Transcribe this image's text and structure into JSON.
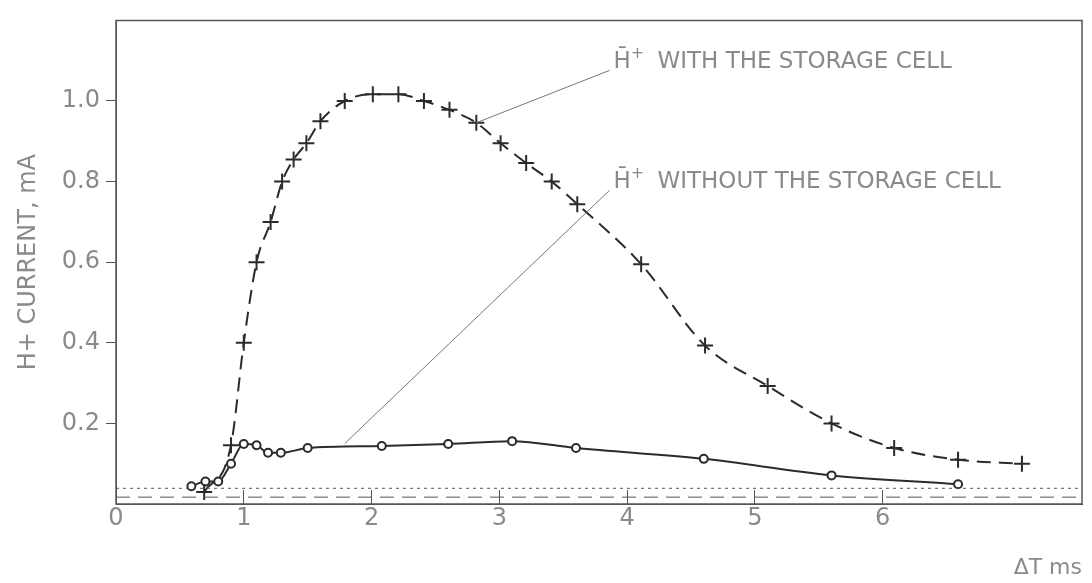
{
  "chart_data": {
    "type": "line",
    "xlabel": "ΔT ms",
    "ylabel": "H+ CURRENT, mA",
    "xlim": [
      0,
      7.56
    ],
    "xticks": [
      0,
      1,
      2,
      3,
      4,
      5,
      6
    ],
    "ylim": [
      0,
      1.2
    ],
    "yticks": [
      0.2,
      0.4,
      0.6,
      0.8,
      {
        "value": 1,
        "label": "1.0"
      }
    ],
    "grid": false,
    "legend": false,
    "series": [
      {
        "color": "#2b2b2b",
        "marker": "cross",
        "line_style": "dashed",
        "x": [
          0.69,
          0.9,
          1.0,
          1.1,
          1.21,
          1.3,
          1.39,
          1.49,
          1.6,
          1.79,
          2.01,
          2.21,
          2.41,
          2.61,
          2.82,
          3.01,
          3.21,
          3.41,
          3.61,
          4.11,
          4.61,
          5.1,
          5.6,
          6.09,
          6.59,
          7.09
        ],
        "values": [
          0.03,
          0.146,
          0.4,
          0.6,
          0.7,
          0.8,
          0.855,
          0.895,
          0.95,
          1.0,
          1.017,
          1.017,
          1.0,
          0.978,
          0.946,
          0.895,
          0.846,
          0.8,
          0.744,
          0.595,
          0.393,
          0.293,
          0.2,
          0.139,
          0.11,
          0.1
        ]
      },
      {
        "color": "#2b2b2b",
        "marker": "circle",
        "line_style": "solid",
        "x": [
          0.59,
          0.7,
          0.8,
          0.9,
          1.0,
          1.1,
          1.19,
          1.29,
          1.5,
          2.08,
          2.6,
          3.1,
          3.6,
          4.6,
          5.6,
          6.59
        ],
        "values": [
          0.044,
          0.056,
          0.056,
          0.1,
          0.149,
          0.146,
          0.127,
          0.127,
          0.139,
          0.144,
          0.149,
          0.156,
          0.139,
          0.112,
          0.071,
          0.049
        ]
      }
    ],
    "ref_lines": [
      {
        "axis": "y",
        "value": 0.039,
        "color": "#555555",
        "line_style": "dotted"
      },
      {
        "axis": "y",
        "value": 0.017,
        "color": "#555555",
        "line_style": "dashed"
      }
    ],
    "annotations": [
      {
        "text": "H̄$^{+}$ WITH THE STORAGE CELL",
        "x": 2.82,
        "y": 0.946
      },
      {
        "text": "H̄$^{+}$ WITHOUT THE STORAGE CELL",
        "x": 1.79,
        "y": 0.15
      }
    ]
  }
}
